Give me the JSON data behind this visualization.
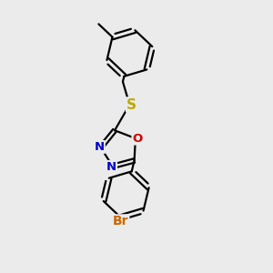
{
  "bg_color": "#ebebeb",
  "bond_color": "#000000",
  "bond_width": 1.6,
  "dbo": 0.035,
  "atom_colors": {
    "N": "#0000cc",
    "O": "#cc0000",
    "S": "#bbaa00",
    "Br": "#cc6600"
  },
  "fig_width": 3.0,
  "fig_height": 3.0,
  "dpi": 100,
  "xlim": [
    -1.0,
    1.6
  ],
  "ylim": [
    -1.9,
    2.1
  ]
}
